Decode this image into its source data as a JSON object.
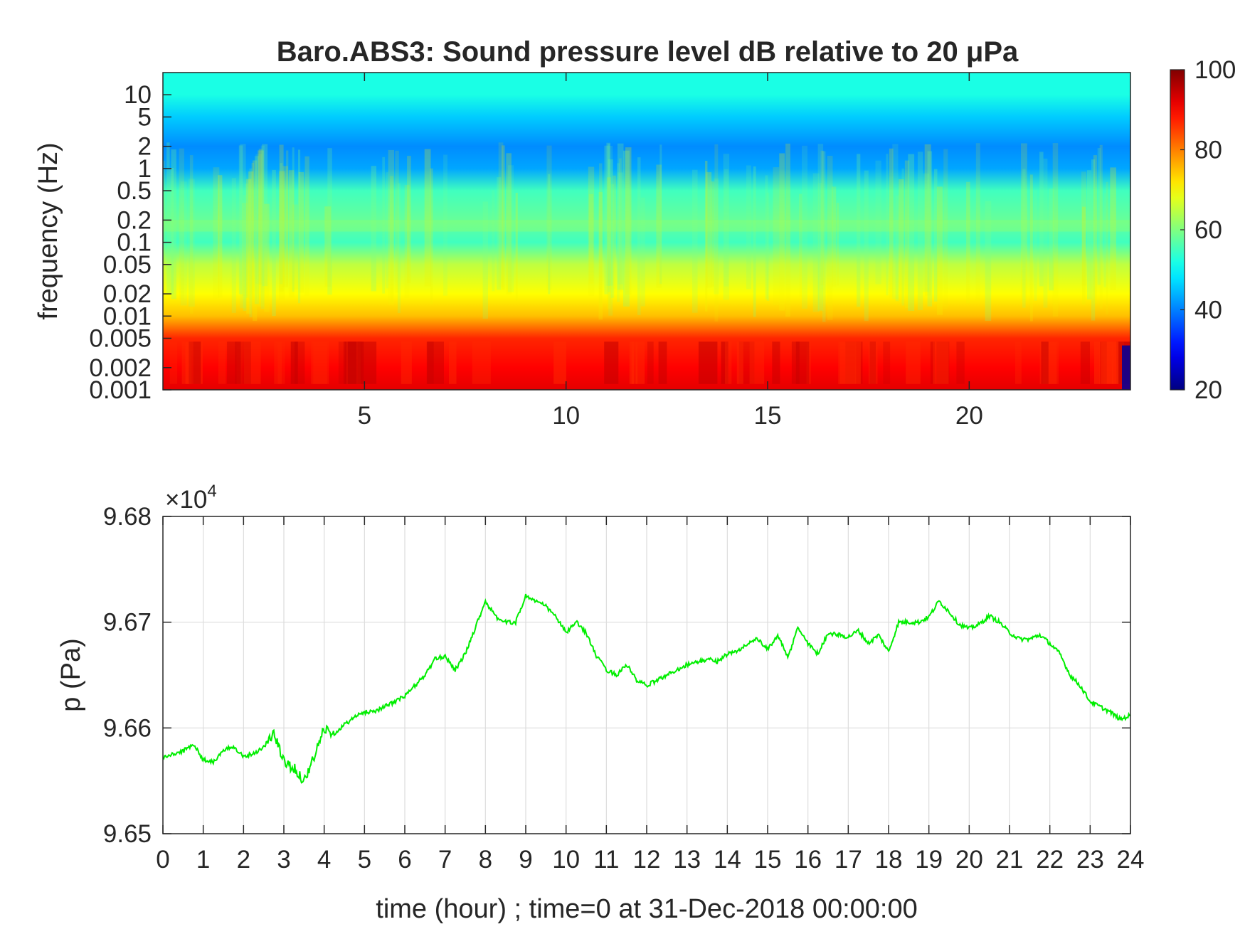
{
  "chart_data": [
    {
      "type": "heatmap",
      "title": "Baro.ABS3: Sound pressure level dB relative to 20 μPa",
      "ylabel": "frequency (Hz)",
      "xlabel": "",
      "x_ticks": [
        "5",
        "10",
        "15",
        "20"
      ],
      "x_tick_values": [
        5,
        10,
        15,
        20
      ],
      "xlim": [
        0,
        24
      ],
      "y_scale": "log",
      "y_ticks": [
        "10",
        "5",
        "2",
        "1",
        "0.5",
        "0.2",
        "0.1",
        "0.05",
        "0.02",
        "0.01",
        "0.005",
        "0.002",
        "0.001"
      ],
      "y_tick_values": [
        10,
        5,
        2,
        1,
        0.5,
        0.2,
        0.1,
        0.05,
        0.02,
        0.01,
        0.005,
        0.002,
        0.001
      ],
      "ylim": [
        0.001,
        20
      ],
      "colorbar": {
        "colormap": "jet",
        "range": [
          20,
          100
        ],
        "ticks": [
          "100",
          "80",
          "60",
          "40",
          "20"
        ],
        "tick_values": [
          100,
          80,
          60,
          40,
          20
        ]
      },
      "z_profile": {
        "frequency_hz": [
          0.001,
          0.002,
          0.005,
          0.01,
          0.02,
          0.05,
          0.1,
          0.2,
          0.5,
          1,
          2,
          5,
          10,
          20
        ],
        "level_db": [
          92,
          90,
          87,
          75,
          70,
          65,
          55,
          58,
          55,
          43,
          41,
          46,
          52,
          52
        ]
      },
      "grid": false
    },
    {
      "type": "line",
      "title": "",
      "xlabel": "time (hour) ; time=0 at 31-Dec-2018 00:00:00",
      "ylabel": "p (Pa)",
      "y_exponent_label": "×10",
      "y_exponent": "4",
      "xlim": [
        0,
        24
      ],
      "ylim": [
        96500,
        96800
      ],
      "x_ticks": [
        "0",
        "1",
        "2",
        "3",
        "4",
        "5",
        "6",
        "7",
        "8",
        "9",
        "10",
        "11",
        "12",
        "13",
        "14",
        "15",
        "16",
        "17",
        "18",
        "19",
        "20",
        "21",
        "22",
        "23",
        "24"
      ],
      "y_ticks": [
        "9.68",
        "9.67",
        "9.66",
        "9.65"
      ],
      "y_tick_values": [
        96800,
        96700,
        96600,
        96500
      ],
      "grid": true,
      "series": [
        {
          "color": "#00ee00",
          "x": [
            0,
            0.25,
            0.5,
            0.75,
            1,
            1.25,
            1.5,
            1.75,
            2,
            2.25,
            2.5,
            2.75,
            3,
            3.25,
            3.5,
            3.75,
            4,
            4.25,
            4.5,
            4.75,
            5,
            5.25,
            5.5,
            5.75,
            6,
            6.25,
            6.5,
            6.75,
            7,
            7.25,
            7.5,
            7.75,
            8,
            8.25,
            8.5,
            8.75,
            9,
            9.25,
            9.5,
            9.75,
            10,
            10.25,
            10.5,
            10.75,
            11,
            11.25,
            11.5,
            11.75,
            12,
            12.25,
            12.5,
            12.75,
            13,
            13.25,
            13.5,
            13.75,
            14,
            14.25,
            14.5,
            14.75,
            15,
            15.25,
            15.5,
            15.75,
            16,
            16.25,
            16.5,
            16.75,
            17,
            17.25,
            17.5,
            17.75,
            18,
            18.25,
            18.5,
            18.75,
            19,
            19.25,
            19.5,
            19.75,
            20,
            20.25,
            20.5,
            20.75,
            21,
            21.25,
            21.5,
            21.75,
            22,
            22.25,
            22.5,
            22.75,
            23,
            23.25,
            23.5,
            23.75,
            24
          ],
          "y": [
            96572,
            96575,
            96578,
            96585,
            96570,
            96568,
            96578,
            96583,
            96573,
            96576,
            96582,
            96595,
            96568,
            96562,
            96550,
            96572,
            96600,
            96595,
            96603,
            96610,
            96615,
            96616,
            96620,
            96625,
            96630,
            96640,
            96650,
            96665,
            96668,
            96655,
            96670,
            96695,
            96720,
            96705,
            96700,
            96700,
            96725,
            96720,
            96715,
            96705,
            96690,
            96700,
            96690,
            96668,
            96655,
            96650,
            96660,
            96645,
            96640,
            96645,
            96650,
            96655,
            96660,
            96662,
            96665,
            96663,
            96670,
            96672,
            96680,
            96684,
            96674,
            96688,
            96666,
            96695,
            96680,
            96670,
            96690,
            96688,
            96686,
            96692,
            96680,
            96688,
            96672,
            96700,
            96700,
            96700,
            96705,
            96720,
            96710,
            96698,
            96694,
            96698,
            96706,
            96700,
            96690,
            96684,
            96684,
            96688,
            96680,
            96670,
            96650,
            96640,
            96625,
            96620,
            96615,
            96608,
            96612
          ]
        }
      ]
    }
  ]
}
